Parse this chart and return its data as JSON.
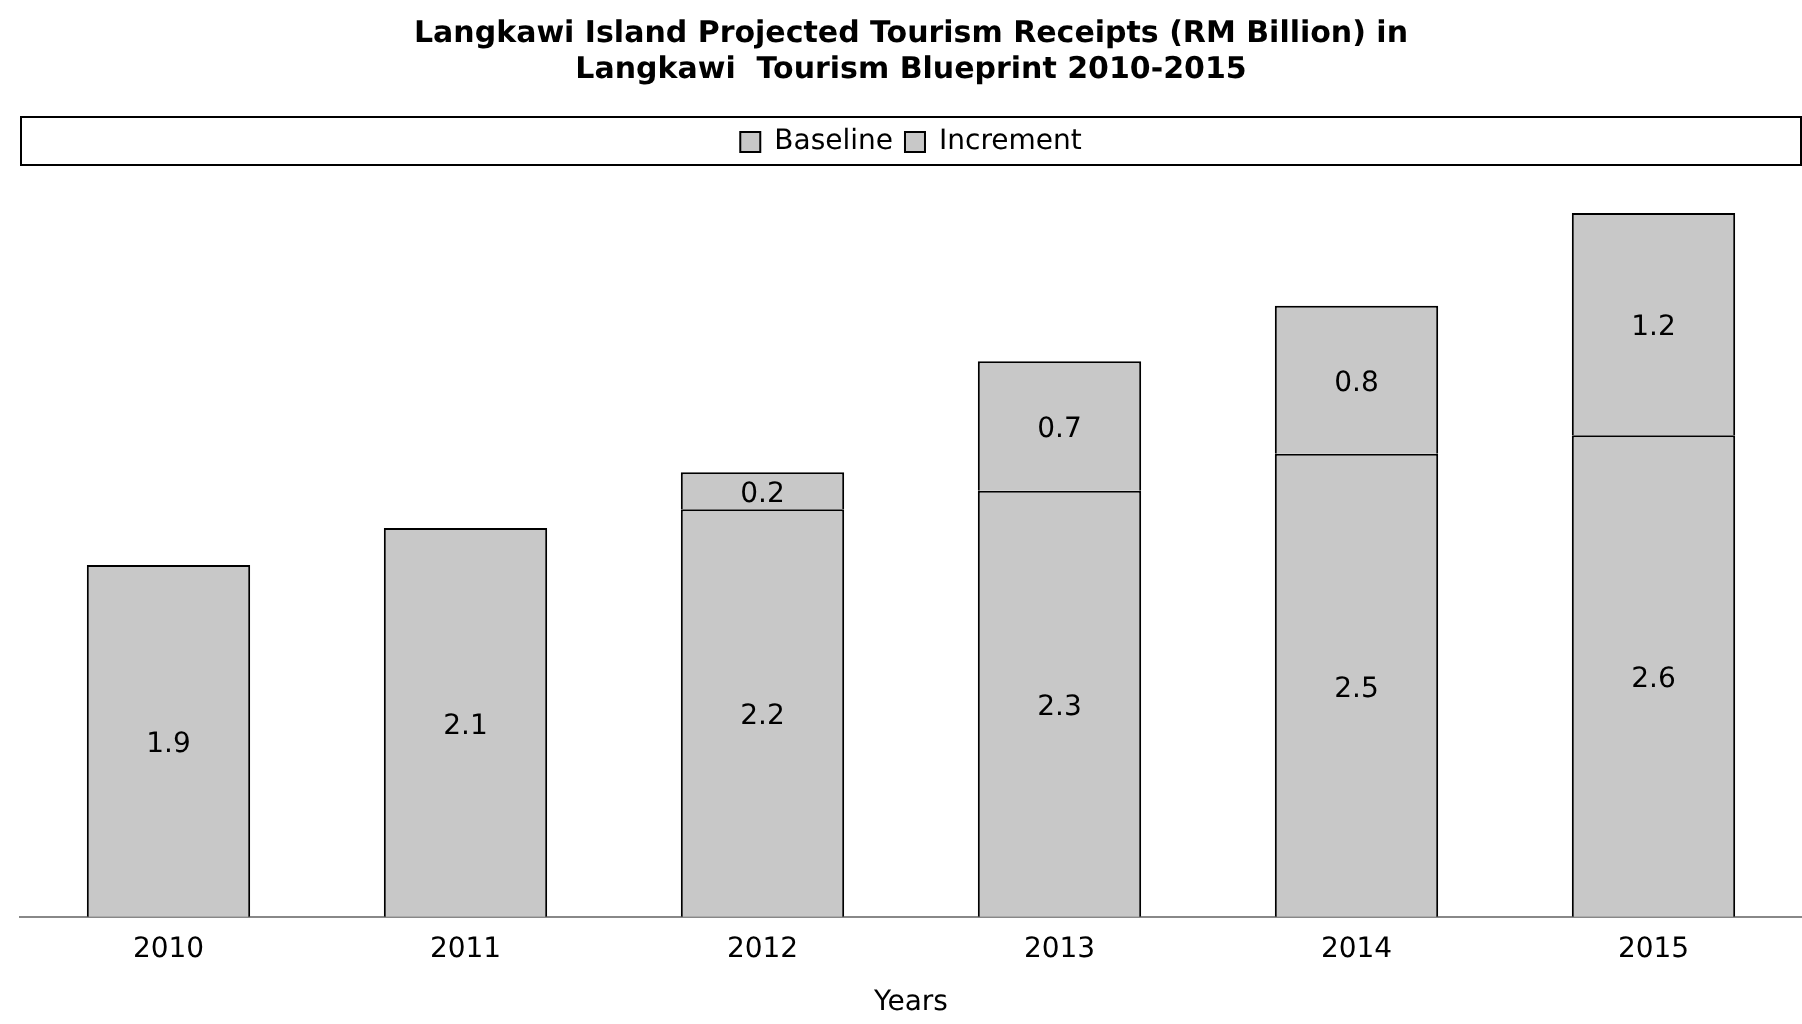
{
  "chart_data": {
    "type": "bar",
    "title": [
      "Langkawi Island Projected Tourism Receipts (RM Billion) in",
      "Langkawi  Tourism Blueprint 2010-2015"
    ],
    "xlabel": "Years",
    "categories": [
      "2010",
      "2011",
      "2012",
      "2013",
      "2014",
      "2015"
    ],
    "stacked": true,
    "legend": "top",
    "data_labels": true,
    "series": [
      {
        "name": "Baseline",
        "color": "#c8c8c8",
        "values": [
          1.9,
          2.1,
          2.2,
          2.3,
          2.5,
          2.6
        ]
      },
      {
        "name": "Increment",
        "color": "#c8c8c8",
        "values": [
          null,
          null,
          0.2,
          0.7,
          0.8,
          1.2
        ]
      }
    ]
  }
}
